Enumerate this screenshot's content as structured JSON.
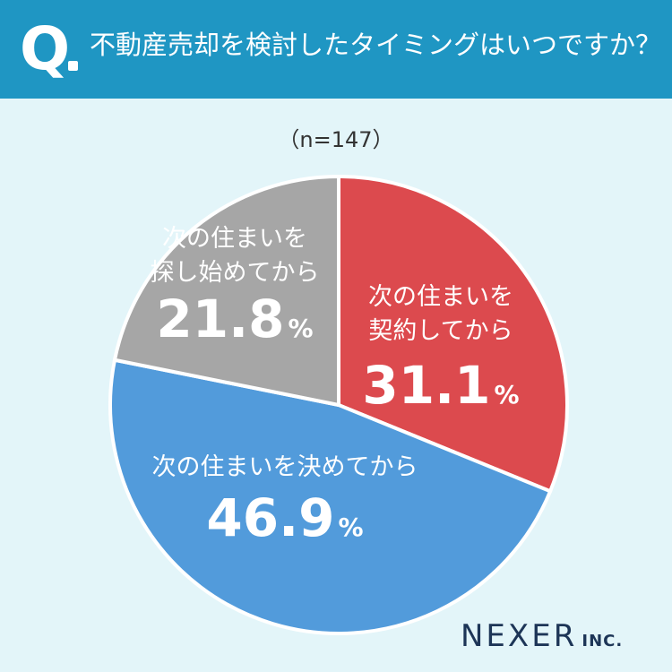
{
  "header": {
    "q_mark": "Q",
    "question": "不動産売却を検討したタイミングはいつですか？"
  },
  "sample_size": "（n=147）",
  "colors": {
    "header_bg": "#1f96c3",
    "page_bg": "#e3f5f9",
    "slice_red": "#dc4a4e",
    "slice_blue": "#529bdb",
    "slice_gray": "#a6a6a6"
  },
  "chart_data": {
    "type": "pie",
    "unit": "%",
    "slices": [
      {
        "label_lines": [
          "次の住まいを",
          "契約してから"
        ],
        "value": 31.1,
        "value_text": "31.1",
        "color": "#dc4a4e"
      },
      {
        "label_lines": [
          "次の住まいを決めてから"
        ],
        "value": 46.9,
        "value_text": "46.9",
        "color": "#529bdb"
      },
      {
        "label_lines": [
          "次の住まいを",
          "探し始めてから"
        ],
        "value": 21.8,
        "value_text": "21.8",
        "color": "#a6a6a6"
      }
    ]
  },
  "brand": {
    "name": "NEXER",
    "suffix": "INC."
  }
}
